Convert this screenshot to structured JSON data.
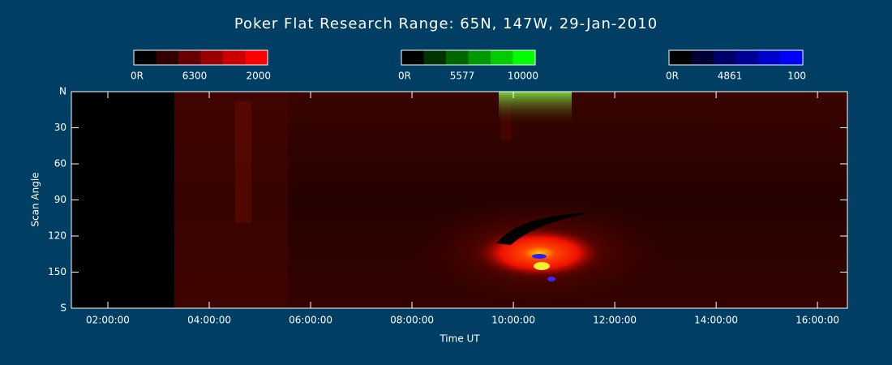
{
  "chart_data": {
    "type": "keogram",
    "title": "Poker Flat Research Range: 65N, 147W, 29-Jan-2010",
    "x_label": "Time UT",
    "y_label": "Scan Angle",
    "xlim": [
      1.28,
      16.59
    ],
    "xticks": [
      {
        "value": 2,
        "label": "02:00:00"
      },
      {
        "value": 4,
        "label": "04:00:00"
      },
      {
        "value": 6,
        "label": "06:00:00"
      },
      {
        "value": 8,
        "label": "08:00:00"
      },
      {
        "value": 10,
        "label": "10:00:00"
      },
      {
        "value": 12,
        "label": "12:00:00"
      },
      {
        "value": 14,
        "label": "14:00:00"
      },
      {
        "value": 16,
        "label": "16:00:00"
      }
    ],
    "ylim": [
      0,
      180
    ],
    "yticks": [
      {
        "value": 0,
        "label": "N"
      },
      30,
      60,
      90,
      120,
      150,
      {
        "value": 180,
        "label": "S"
      }
    ],
    "colorbars": [
      {
        "min_label": "0R",
        "name": "6300",
        "max": 2000,
        "color": "#ff0000"
      },
      {
        "min_label": "0R",
        "name": "5577",
        "max": 10000,
        "color": "#00ff00"
      },
      {
        "min_label": "0R",
        "name": "4861",
        "max": 100,
        "color": "#0000ff"
      }
    ]
  }
}
